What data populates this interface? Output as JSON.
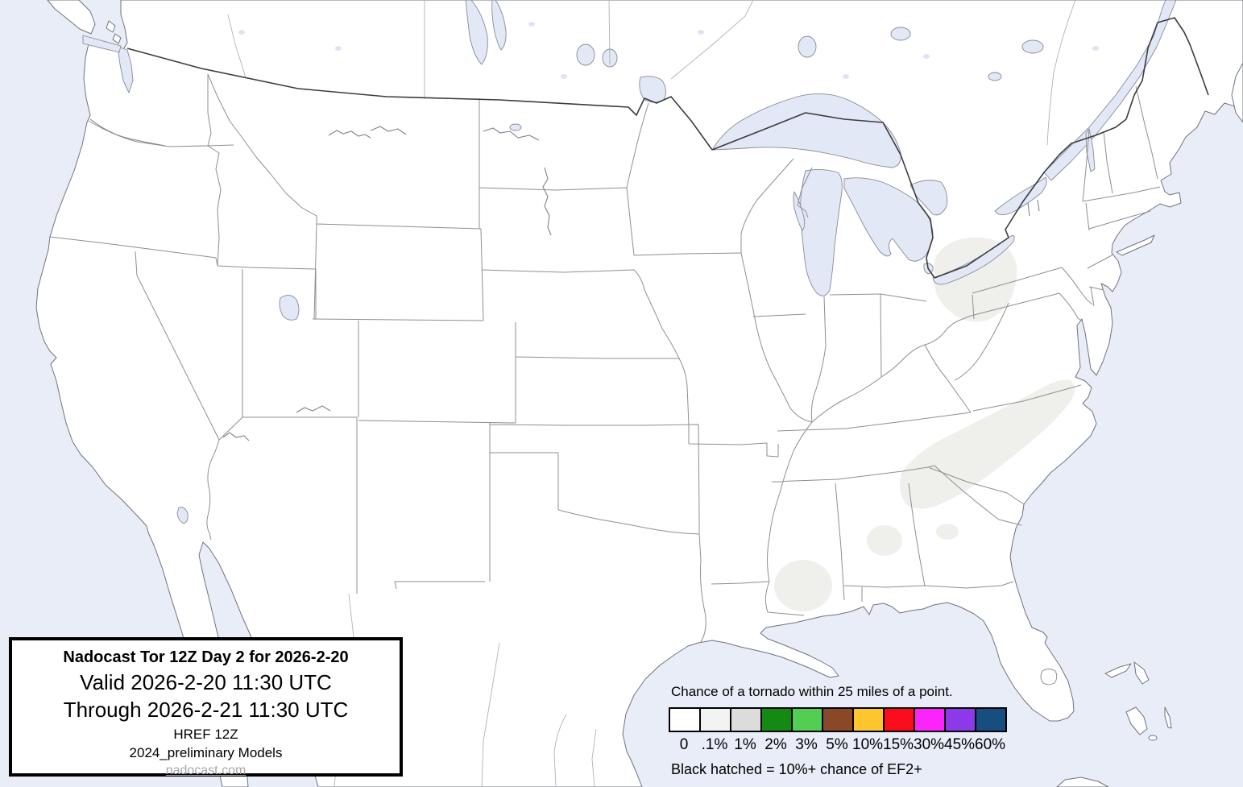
{
  "title_box": {
    "title": "Nadocast Tor 12Z Day 2 for 2026-2-20",
    "valid": "Valid 2026-2-20 11:30 UTC",
    "through": "Through 2026-2-21 11:30 UTC",
    "model": "HREF 12Z",
    "models_note": "2024_preliminary Models",
    "site": "nadocast.com"
  },
  "legend": {
    "heading": "Chance of a tornado within 25 miles of a point.",
    "items": [
      {
        "label": "0",
        "color": "#ffffff"
      },
      {
        "label": ".1%",
        "color": "#f3f3f3"
      },
      {
        "label": "1%",
        "color": "#dcdcdc"
      },
      {
        "label": "2%",
        "color": "#148a12"
      },
      {
        "label": "3%",
        "color": "#53ce53"
      },
      {
        "label": "5%",
        "color": "#8b4827"
      },
      {
        "label": "10%",
        "color": "#fdc62f"
      },
      {
        "label": "15%",
        "color": "#fb0d1d"
      },
      {
        "label": "30%",
        "color": "#fb25fb"
      },
      {
        "label": "45%",
        "color": "#8c3ae8"
      },
      {
        "label": "60%",
        "color": "#174e80"
      }
    ],
    "footnote": "Black hatched = 10%+ chance of EF2+"
  },
  "map": {
    "description": "Continental US forecast map; very light gray areas mark 0.1% tornado probability over the Carolinas, NE Ohio / NW Pennsylvania, central Alabama, southwest Mississippi and the Georgia / South Carolina border",
    "colors": {
      "ocean": "#e9edf8",
      "land": "#ffffff",
      "lake": "#e2e8f6",
      "prob_0_1": "#efefec",
      "coastline": "#6e737d",
      "state_border": "#8f8f8f",
      "intl_border": "#3c3c3c"
    }
  }
}
